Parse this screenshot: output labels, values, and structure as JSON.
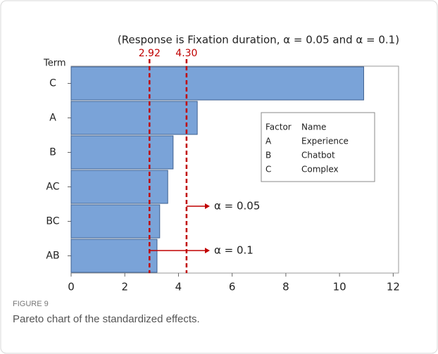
{
  "chart_data": {
    "type": "bar",
    "orientation": "horizontal",
    "title": "(Response is Fixation duration, α = 0.05 and α = 0.1)",
    "ylabel": "Term",
    "categories": [
      "C",
      "A",
      "B",
      "AC",
      "BC",
      "AB"
    ],
    "values": [
      10.9,
      4.7,
      3.8,
      3.6,
      3.3,
      3.2
    ],
    "color": "#7aa3d8",
    "xlim": [
      0,
      12.2
    ],
    "xticks": [
      0,
      2,
      4,
      6,
      8,
      10,
      12
    ],
    "reference_lines": [
      2.92,
      {
        "value": 4.3,
        "label": "4.30"
      }
    ],
    "reference_color": "#c00000",
    "annotations": [
      "α = 0.1",
      "α = 0.05"
    ],
    "factor_table": {
      "header": [
        "Factor",
        "Name"
      ],
      "rows": [
        [
          "A",
          "Experience"
        ],
        [
          "B",
          "Chatbot"
        ],
        [
          "C",
          "Complex"
        ]
      ]
    }
  },
  "figure_label": "FIGURE 9",
  "caption": "Pareto chart of the standardized effects."
}
